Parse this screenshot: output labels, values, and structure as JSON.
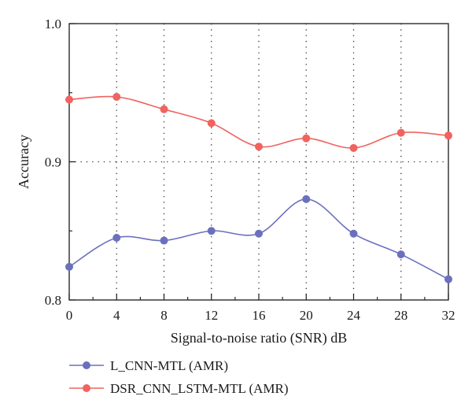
{
  "chart_data": {
    "type": "line",
    "title": "",
    "xlabel": "Signal-to-noise ratio (SNR) dB",
    "ylabel": "Accuracy",
    "x": [
      0,
      4,
      8,
      12,
      16,
      20,
      24,
      28,
      32
    ],
    "x_ticks": [
      "0",
      "4",
      "8",
      "12",
      "16",
      "20",
      "24",
      "28",
      "32"
    ],
    "y_ticks": [
      "0.8",
      "0.9",
      "1.0"
    ],
    "xlim": [
      0,
      32
    ],
    "ylim": [
      0.8,
      1.0
    ],
    "grid": "dotted vertical at labeled x ticks, dotted horizontal at 0.9",
    "legend_position": "bottom",
    "curve": "smooth",
    "series": [
      {
        "name": "L_CNN-MTL (AMR)",
        "color": "#6b70be",
        "values": [
          0.824,
          0.845,
          0.843,
          0.85,
          0.848,
          0.873,
          0.848,
          0.833,
          0.815
        ]
      },
      {
        "name": "DSR_CNN_LSTM-MTL (AMR)",
        "color": "#f0635f",
        "values": [
          0.945,
          0.947,
          0.938,
          0.928,
          0.911,
          0.917,
          0.91,
          0.921,
          0.919
        ]
      }
    ]
  }
}
